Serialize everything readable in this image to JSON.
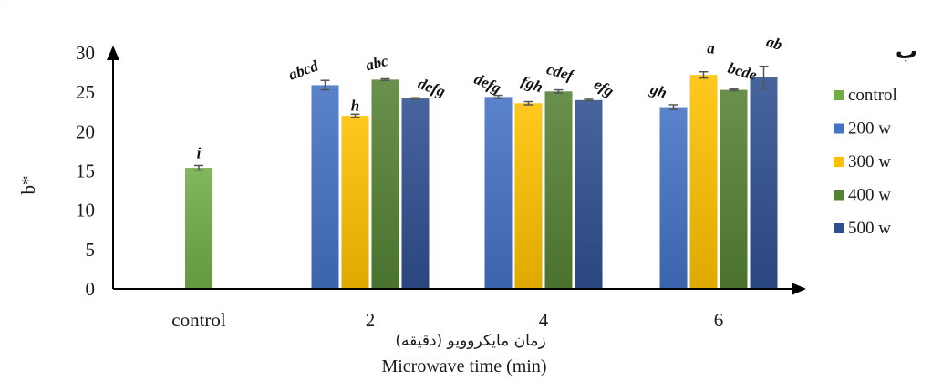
{
  "chart_data": {
    "type": "bar",
    "panel_label": "ب",
    "ylabel": "b*",
    "xlabel": "Microwave time (min)",
    "xlabel_fa": "زمان مایکروویو (دقیقه)",
    "ylim": [
      0,
      30
    ],
    "yticks": [
      "0",
      "5",
      "10",
      "15",
      "20",
      "25",
      "30"
    ],
    "categories": [
      "control",
      "2",
      "4",
      "6"
    ],
    "series": [
      {
        "name": "control",
        "color": "#70ad47",
        "values": [
          15.4,
          null,
          null,
          null
        ],
        "errors": [
          0.3,
          null,
          null,
          null
        ],
        "letters": [
          "i",
          null,
          null,
          null
        ]
      },
      {
        "name": "200 w",
        "color": "#4472c4",
        "values": [
          null,
          25.9,
          24.4,
          23.1
        ],
        "errors": [
          null,
          0.6,
          0.2,
          0.3
        ],
        "letters": [
          null,
          "abcd",
          "defg",
          "gh"
        ]
      },
      {
        "name": "300 w",
        "color": "#ffc000",
        "values": [
          null,
          22.0,
          23.6,
          27.2
        ],
        "errors": [
          null,
          0.2,
          0.2,
          0.4
        ],
        "letters": [
          null,
          "h",
          "fgh",
          "a"
        ]
      },
      {
        "name": "400 w",
        "color": "#548235",
        "values": [
          null,
          26.6,
          25.1,
          25.3
        ],
        "errors": [
          null,
          0.1,
          0.2,
          0.1
        ],
        "letters": [
          null,
          "abc",
          "cdef",
          "bcde"
        ]
      },
      {
        "name": "500 w",
        "color": "#2f4f8f",
        "values": [
          null,
          24.2,
          24.0,
          26.9
        ],
        "errors": [
          null,
          0.1,
          0.1,
          1.4
        ],
        "letters": [
          null,
          "defg",
          "efg",
          "ab"
        ]
      }
    ],
    "legend_position": "right",
    "grid": false
  }
}
